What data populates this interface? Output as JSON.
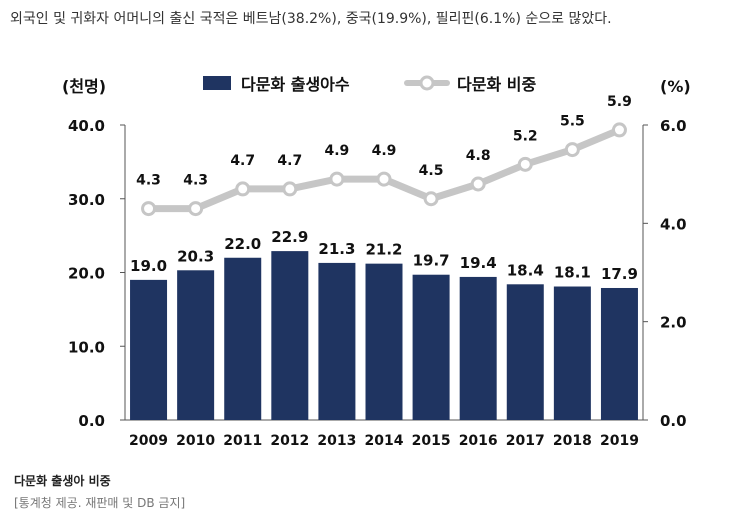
{
  "caption": "외국인 및 귀화자 어머니의 출신 국적은 베트남(38.2%), 중국(19.9%), 필리핀(6.1%) 순으로 많았다.",
  "footer": {
    "title": "다문화 출생아 비중",
    "source": "[통계청 제공. 재판매 및 DB 금지]"
  },
  "colors": {
    "bar": "#1f3461",
    "line": "#c6c6c6",
    "axis": "#555555",
    "text": "#111111"
  },
  "chart_data": {
    "type": "bar+line",
    "categories": [
      "2009",
      "2010",
      "2011",
      "2012",
      "2013",
      "2014",
      "2015",
      "2016",
      "2017",
      "2018",
      "2019"
    ],
    "series": [
      {
        "name": "다문화 출생아수",
        "type": "bar",
        "axis": "left",
        "values": [
          19.0,
          20.3,
          22.0,
          22.9,
          21.3,
          21.2,
          19.7,
          19.4,
          18.4,
          18.1,
          17.9
        ],
        "labels": [
          "19.0",
          "20.3",
          "22.0",
          "22.9",
          "21.3",
          "21.2",
          "19.7",
          "19.4",
          "18.4",
          "18.1",
          "17.9"
        ]
      },
      {
        "name": "다문화 비중",
        "type": "line",
        "axis": "right",
        "values": [
          4.3,
          4.3,
          4.7,
          4.7,
          4.9,
          4.9,
          4.5,
          4.8,
          5.2,
          5.5,
          5.9
        ],
        "labels": [
          "4.3",
          "4.3",
          "4.7",
          "4.7",
          "4.9",
          "4.9",
          "4.5",
          "4.8",
          "5.2",
          "5.5",
          "5.9"
        ]
      }
    ],
    "left_axis": {
      "unit": "(천명)",
      "ylim": [
        0,
        40
      ],
      "ticks": [
        "0.0",
        "10.0",
        "20.0",
        "30.0",
        "40.0"
      ]
    },
    "right_axis": {
      "unit": "(%)",
      "ylim": [
        0,
        6
      ],
      "ticks": [
        "0.0",
        "2.0",
        "4.0",
        "6.0"
      ]
    },
    "legend": {
      "position": "top-center"
    }
  }
}
